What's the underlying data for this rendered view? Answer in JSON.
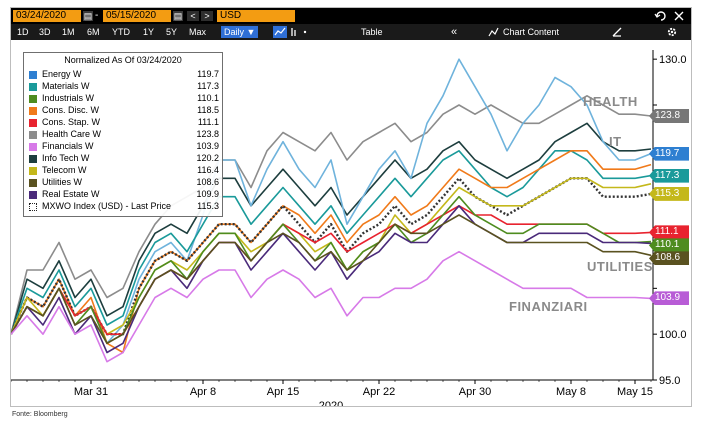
{
  "toolbar": {
    "start_date": "03/24/2020",
    "end_date": "05/15/2020",
    "currency": "USD",
    "nav_back": "<",
    "nav_fwd": ">",
    "date_sep": "-",
    "calendar_glyph": "▤",
    "undo_icon": "undo-icon",
    "redo_icon": "redo-icon"
  },
  "range_bar": {
    "ranges": [
      "1D",
      "3D",
      "1M",
      "6M",
      "YTD",
      "1Y",
      "5Y",
      "Max"
    ],
    "frequency": "Daily ▼",
    "table_label": "Table",
    "chart_content_label": "Chart Content",
    "collapse_glyph": "«"
  },
  "legend": {
    "title": "Normalized As Of 03/24/2020",
    "entries": [
      {
        "name": "Energy W",
        "value": "119.7",
        "color": "#2e7fd1"
      },
      {
        "name": "Materials W",
        "value": "117.3",
        "color": "#1a9a9a"
      },
      {
        "name": "Industrials W",
        "value": "110.1",
        "color": "#4e8c1f"
      },
      {
        "name": "Cons. Disc. W",
        "value": "118.5",
        "color": "#f07a1a"
      },
      {
        "name": "Cons. Stap. W",
        "value": "111.1",
        "color": "#e8232f"
      },
      {
        "name": "Health Care W",
        "value": "123.8",
        "color": "#8c8c8c"
      },
      {
        "name": "Financials W",
        "value": "103.9",
        "color": "#d77ae8"
      },
      {
        "name": "Info Tech W",
        "value": "120.2",
        "color": "#1d3e3e"
      },
      {
        "name": "Telecom W",
        "value": "116.4",
        "color": "#c4b81b"
      },
      {
        "name": "Utilities W",
        "value": "108.6",
        "color": "#5a5220"
      },
      {
        "name": "Real Estate W",
        "value": "109.9",
        "color": "#4a2a7a"
      },
      {
        "name": "MXWO Index (USD) - Last Price",
        "value": "115.3",
        "color": "#444444"
      }
    ]
  },
  "annotations": {
    "health": "HEALTH",
    "it": "IT",
    "utilities": "UTILITIES",
    "financials": "FINANZIARI"
  },
  "right_tags": [
    {
      "text": "123.8",
      "color": "#777777",
      "value": 123.8
    },
    {
      "text": "119.7",
      "color": "#2e7fd1",
      "value": 119.7
    },
    {
      "text": "117.3",
      "color": "#1a9a9a",
      "value": 117.3
    },
    {
      "text": "115.3",
      "color": "#c4b81b",
      "value": 115.3
    },
    {
      "text": "111.1",
      "color": "#e8232f",
      "value": 111.1
    },
    {
      "text": "110.1",
      "color": "#4e8c1f",
      "value": 110.1
    },
    {
      "text": "108.6",
      "color": "#5a5220",
      "value": 108.6
    },
    {
      "text": "103.9",
      "color": "#b85cd6",
      "value": 103.9
    }
  ],
  "source": "Fonte: Bloomberg",
  "chart_data": {
    "type": "line",
    "xlabel": "2020",
    "ylabel": "",
    "ylim": [
      95,
      131
    ],
    "yticks": [
      95.0,
      100.0,
      105.0,
      110.0,
      115.0,
      120.0,
      125.0,
      130.0
    ],
    "ytick_labels": [
      "95.0",
      "100.0",
      "",
      "",
      "",
      "",
      "",
      "130.0"
    ],
    "xticks": [
      "Mar 31",
      "Apr 8",
      "Apr 15",
      "Apr 22",
      "Apr 30",
      "May 8",
      "May 15"
    ],
    "xtick_index": [
      5,
      12,
      17,
      23,
      29,
      35,
      39
    ],
    "x_count": 41,
    "series": [
      {
        "name": "Health Care W",
        "color": "#8c8c8c",
        "values": [
          100,
          107,
          107,
          110,
          106,
          107,
          104,
          105,
          109,
          112,
          114,
          115,
          116,
          119,
          119,
          116,
          120,
          122,
          121,
          120,
          122,
          119,
          121,
          122,
          123,
          121,
          122,
          124,
          125,
          124,
          125,
          124,
          123,
          123,
          124,
          125,
          126,
          125,
          124,
          124,
          123.8
        ]
      },
      {
        "name": "Info Tech W",
        "color": "#1d3e3e",
        "values": [
          100,
          106,
          105,
          108,
          104,
          106,
          102,
          103,
          108,
          111,
          112,
          111,
          114,
          117,
          117,
          114,
          116,
          118,
          116,
          114,
          116,
          113,
          115,
          117,
          119,
          117,
          118,
          120,
          121,
          119,
          118,
          117,
          118,
          119,
          121,
          122,
          123,
          121,
          120,
          120,
          120.2
        ]
      },
      {
        "name": "Energy W",
        "color": "#6fb3dc",
        "values": [
          100,
          104,
          103,
          106,
          102,
          103,
          99,
          101,
          106,
          109,
          110,
          108,
          113,
          119,
          119,
          114,
          118,
          121,
          118,
          116,
          119,
          112,
          115,
          118,
          120,
          117,
          123,
          126,
          130,
          127,
          124,
          120,
          123,
          125,
          128,
          127,
          125,
          121,
          119,
          119,
          119.7
        ]
      },
      {
        "name": "Materials W",
        "color": "#1a9a9a",
        "values": [
          100,
          105,
          104,
          107,
          103,
          105,
          101,
          102,
          107,
          110,
          111,
          109,
          112,
          115,
          115,
          112,
          114,
          116,
          114,
          112,
          114,
          111,
          113,
          115,
          117,
          115,
          117,
          119,
          120,
          118,
          116,
          115,
          116,
          118,
          120,
          120,
          119,
          117,
          117,
          117,
          117.3
        ]
      },
      {
        "name": "Cons. Disc. W",
        "color": "#f07a1a",
        "values": [
          100,
          104,
          103,
          106,
          102,
          104,
          99,
          98,
          105,
          108,
          109,
          108,
          110,
          112,
          112,
          110,
          112,
          114,
          113,
          111,
          113,
          110,
          112,
          113,
          115,
          113,
          114,
          116,
          118,
          117,
          116,
          116,
          117,
          118,
          119,
          120,
          120,
          118,
          118,
          118,
          118.5
        ]
      },
      {
        "name": "MXWO Index (USD) - Last Price",
        "color": "#333333",
        "values": [
          100,
          104,
          103,
          106,
          102,
          103,
          100,
          100,
          105,
          108,
          109,
          108,
          110,
          112,
          112,
          110,
          112,
          114,
          112,
          110,
          112,
          109,
          111,
          112,
          114,
          112,
          113,
          115,
          117,
          115,
          114,
          113,
          114,
          115,
          116,
          117,
          117,
          115,
          115,
          115,
          115.3
        ]
      },
      {
        "name": "Telecom W",
        "color": "#c4b81b",
        "values": [
          100,
          104,
          102,
          105,
          102,
          103,
          100,
          101,
          104,
          107,
          108,
          107,
          109,
          111,
          111,
          109,
          110,
          112,
          111,
          109,
          110,
          107,
          109,
          110,
          113,
          111,
          112,
          114,
          116,
          115,
          114,
          114,
          114,
          115,
          116,
          117,
          117,
          116,
          116,
          116,
          116.4
        ]
      },
      {
        "name": "Cons. Stap. W",
        "color": "#e8232f",
        "values": [
          100,
          103,
          102,
          105,
          102,
          103,
          100,
          100,
          103,
          106,
          107,
          106,
          108,
          110,
          110,
          108,
          110,
          112,
          111,
          110,
          111,
          109,
          110,
          111,
          112,
          111,
          112,
          113,
          114,
          113,
          113,
          112,
          112,
          112,
          112,
          112,
          112,
          111,
          111,
          111,
          111.1
        ]
      },
      {
        "name": "Industrials W",
        "color": "#4e8c1f",
        "values": [
          100,
          103,
          102,
          105,
          101,
          103,
          99,
          100,
          104,
          107,
          108,
          106,
          109,
          111,
          111,
          108,
          110,
          112,
          110,
          108,
          110,
          107,
          109,
          110,
          112,
          110,
          111,
          113,
          115,
          113,
          112,
          111,
          111,
          112,
          112,
          112,
          112,
          111,
          110,
          110,
          110.1
        ]
      },
      {
        "name": "Real Estate W",
        "color": "#4a2a7a",
        "values": [
          100,
          103,
          101,
          104,
          100,
          102,
          98,
          99,
          103,
          106,
          107,
          105,
          108,
          110,
          110,
          107,
          109,
          111,
          109,
          107,
          109,
          106,
          108,
          109,
          111,
          110,
          110,
          112,
          114,
          112,
          111,
          110,
          110,
          111,
          111,
          111,
          111,
          110,
          110,
          110,
          109.9
        ]
      },
      {
        "name": "Utilities W",
        "color": "#5a5220",
        "values": [
          100,
          103,
          102,
          105,
          101,
          102,
          99,
          100,
          103,
          106,
          107,
          106,
          108,
          110,
          110,
          108,
          110,
          111,
          110,
          108,
          109,
          107,
          108,
          110,
          112,
          111,
          111,
          112,
          113,
          112,
          111,
          110,
          110,
          110,
          110,
          110,
          110,
          109,
          109,
          109,
          108.6
        ]
      },
      {
        "name": "Financials W",
        "color": "#d77ae8",
        "values": [
          100,
          102,
          100,
          103,
          100,
          101,
          97,
          98,
          101,
          104,
          105,
          104,
          106,
          107,
          107,
          104,
          106,
          107,
          106,
          104,
          105,
          102,
          104,
          104,
          105,
          105,
          106,
          108,
          109,
          108,
          107,
          106,
          105,
          105,
          105,
          105,
          104,
          104,
          104,
          104,
          103.9
        ]
      }
    ]
  }
}
